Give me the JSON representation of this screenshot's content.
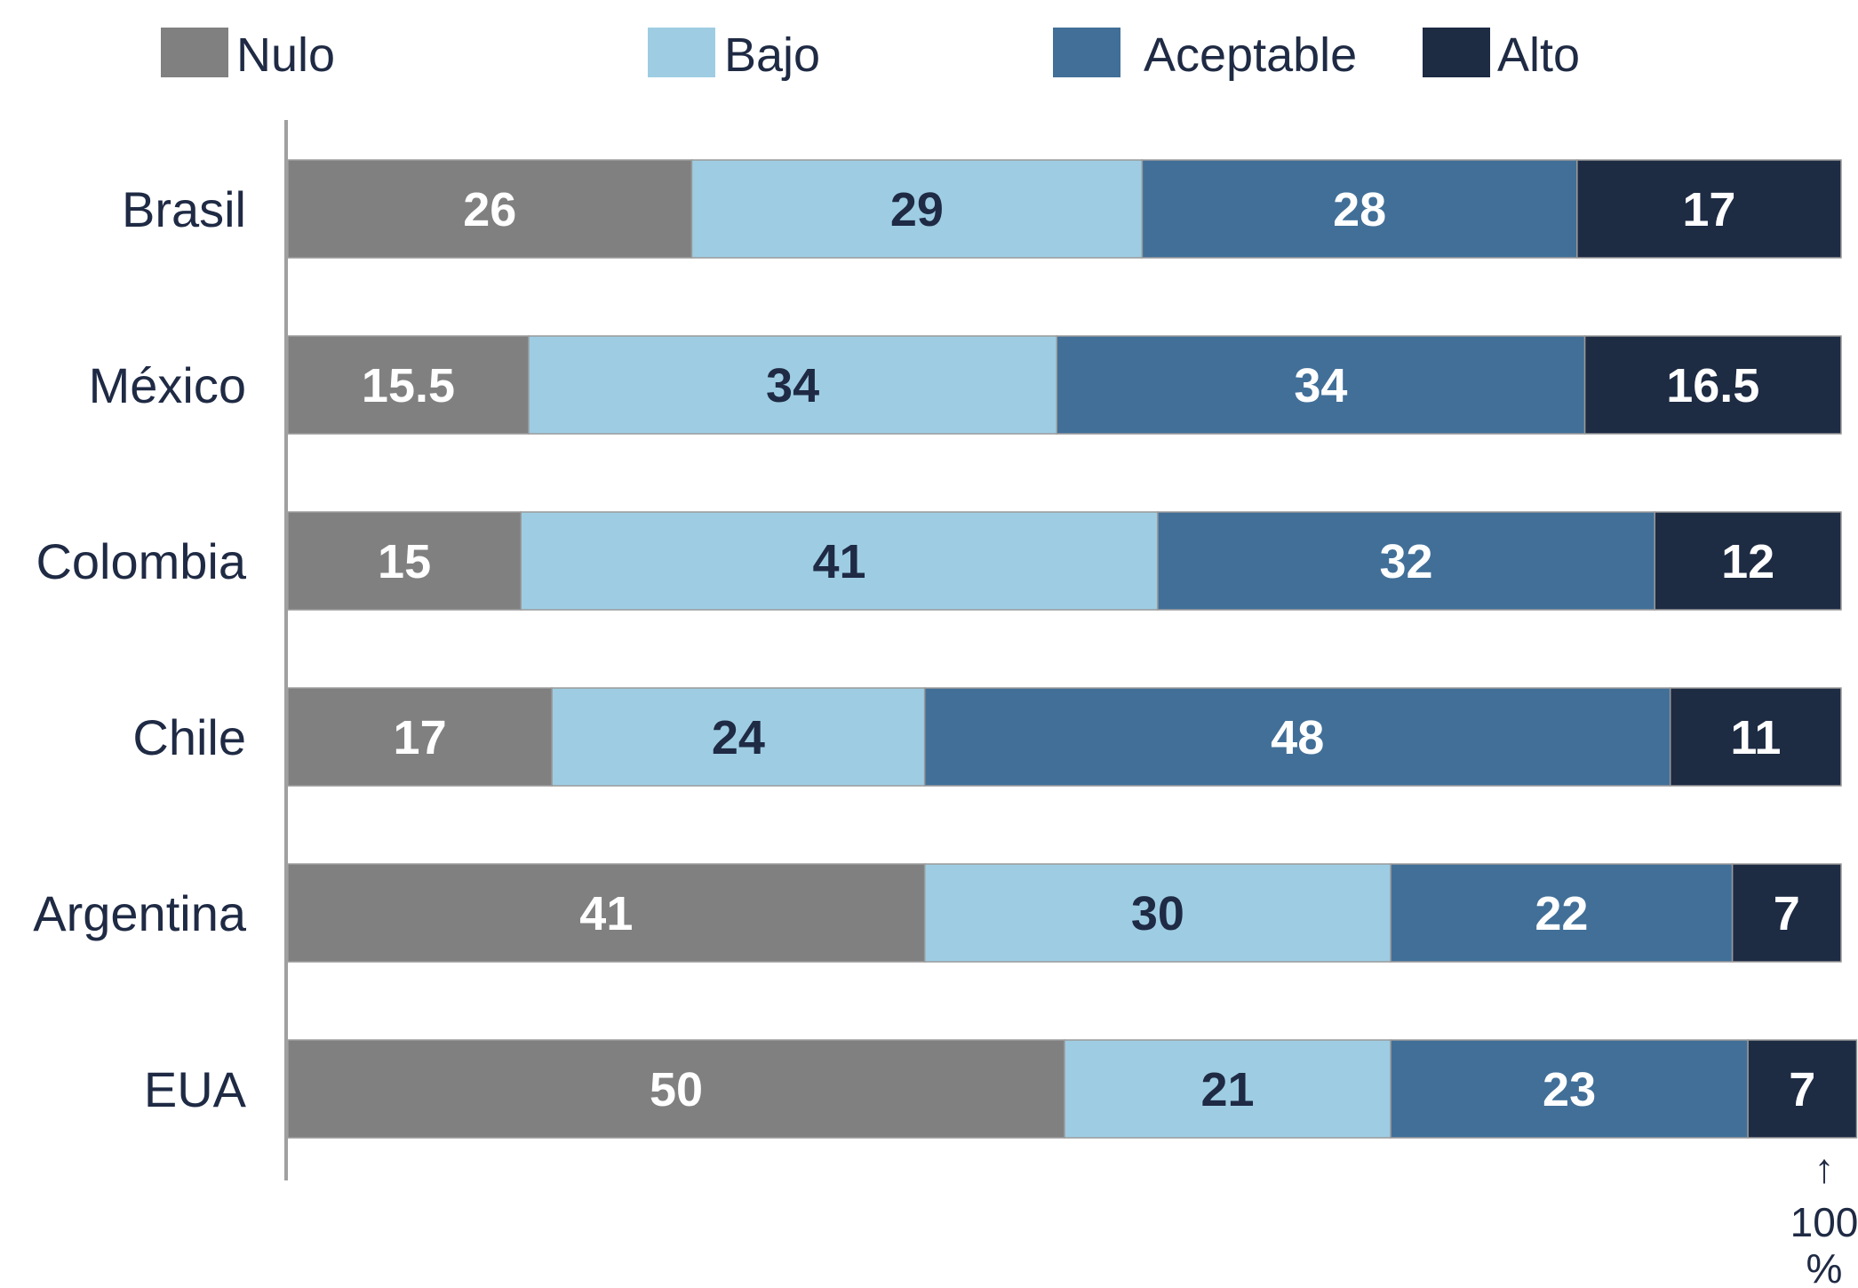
{
  "chart_data": {
    "type": "bar",
    "orientation": "horizontal",
    "stacked": true,
    "categories": [
      "Brasil",
      "México",
      "Colombia",
      "Chile",
      "Argentina",
      "EUA"
    ],
    "series": [
      {
        "name": "Nulo",
        "color": "#808080",
        "label_color": "#ffffff",
        "values": [
          26,
          15.5,
          15,
          17,
          41,
          50
        ]
      },
      {
        "name": "Bajo",
        "color": "#9ecde3",
        "label_color": "#1f2a44",
        "values": [
          29,
          34,
          41,
          24,
          30,
          21
        ]
      },
      {
        "name": "Aceptable",
        "color": "#416f98",
        "label_color": "#ffffff",
        "values": [
          28,
          34,
          32,
          48,
          22,
          23
        ]
      },
      {
        "name": "Alto",
        "color": "#1d2b43",
        "label_color": "#ffffff",
        "values": [
          17,
          16.5,
          12,
          11,
          7,
          7
        ]
      }
    ],
    "xlim": [
      0,
      100
    ],
    "legend_position": "top",
    "grid": false,
    "annotation": {
      "arrow": "↑",
      "line1": "100",
      "line2": "%"
    },
    "colors": {
      "axis": "#a0a0a0",
      "text": "#1f2a44",
      "bar_border": "#9a9a9a"
    }
  }
}
